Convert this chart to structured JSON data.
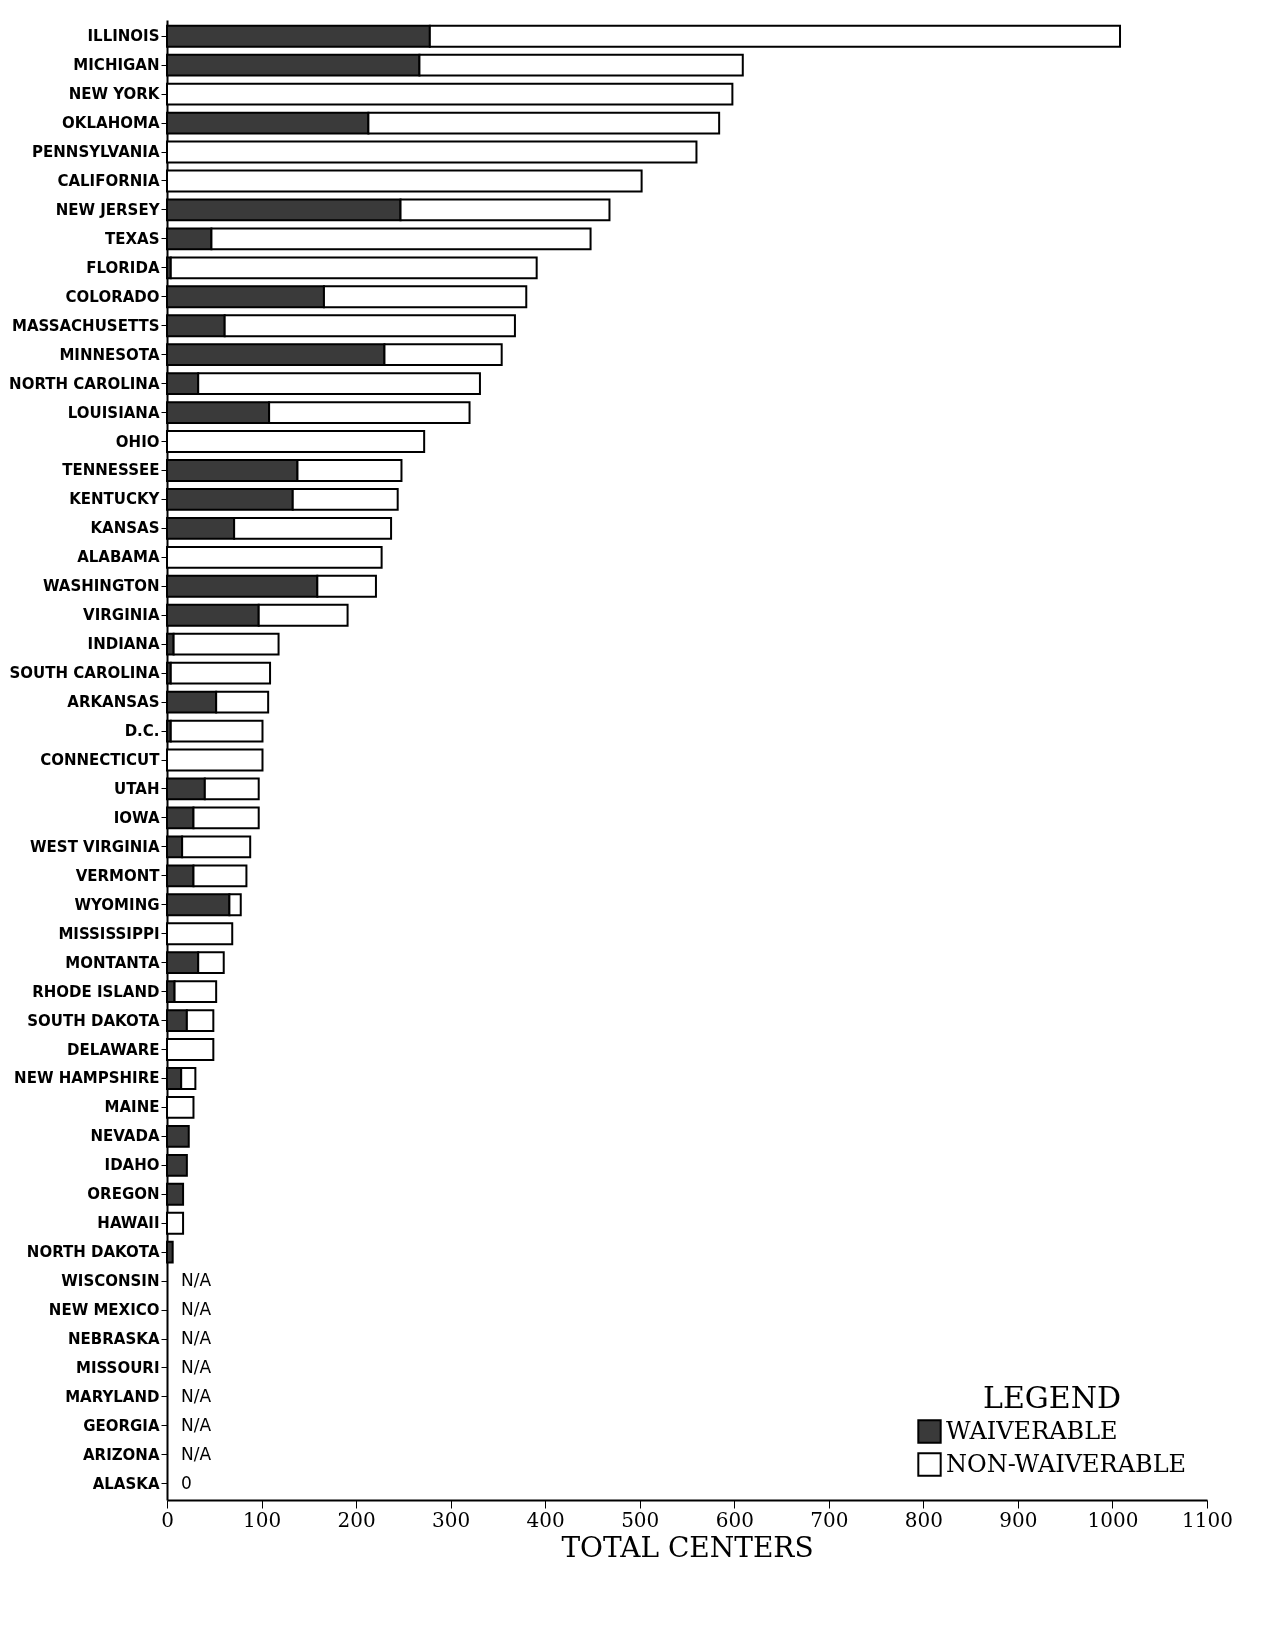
{
  "chart_data": {
    "type": "bar",
    "orientation": "horizontal",
    "stacked": true,
    "categories": [
      "ILLINOIS",
      "MICHIGAN",
      "NEW YORK",
      "OKLAHOMA",
      "PENNSYLVANIA",
      "CALIFORNIA",
      "NEW JERSEY",
      "TEXAS",
      "FLORIDA",
      "COLORADO",
      "MASSACHUSETTS",
      "MINNESOTA",
      "NORTH CAROLINA",
      "LOUISIANA",
      "OHIO",
      "TENNESSEE",
      "KENTUCKY",
      "KANSAS",
      "ALABAMA",
      "WASHINGTON",
      "VIRGINIA",
      "INDIANA",
      "SOUTH CAROLINA",
      "ARKANSAS",
      "D.C.",
      "CONNECTICUT",
      "UTAH",
      "IOWA",
      "WEST VIRGINIA",
      "VERMONT",
      "WYOMING",
      "MISSISSIPPI",
      "MONTANTA",
      "RHODE ISLAND",
      "SOUTH DAKOTA",
      "DELAWARE",
      "NEW HAMPSHIRE",
      "MAINE",
      "NEVADA",
      "IDAHO",
      "OREGON",
      "HAWAII",
      "NORTH DAKOTA",
      "WISCONSIN",
      "NEW MEXICO",
      "NEBRASKA",
      "MISSOURI",
      "MARYLAND",
      "GEORGIA",
      "ARIZONA",
      "ALASKA"
    ],
    "series": [
      {
        "name": "WAIVERABLE",
        "color": "#3a3a3a",
        "values": [
          278,
          267,
          0,
          213,
          0,
          0,
          247,
          47,
          4,
          166,
          61,
          230,
          33,
          108,
          0,
          138,
          133,
          71,
          0,
          159,
          97,
          7,
          4,
          52,
          4,
          0,
          40,
          28,
          16,
          28,
          66,
          0,
          33,
          8,
          21,
          0,
          15,
          0,
          23,
          21,
          17,
          0,
          6,
          null,
          null,
          null,
          null,
          null,
          null,
          null,
          0
        ],
        "value_labels": [
          null,
          null,
          null,
          null,
          null,
          null,
          null,
          null,
          null,
          null,
          null,
          null,
          null,
          null,
          null,
          null,
          null,
          null,
          null,
          null,
          null,
          null,
          null,
          null,
          null,
          null,
          null,
          null,
          null,
          null,
          null,
          null,
          null,
          null,
          null,
          null,
          null,
          null,
          null,
          null,
          null,
          null,
          null,
          "N/A",
          "N/A",
          "N/A",
          "N/A",
          "N/A",
          "N/A",
          "N/A",
          "0"
        ]
      },
      {
        "name": "NON-WAIVERABLE",
        "color": "#ffffff",
        "values": [
          730,
          342,
          598,
          371,
          560,
          502,
          221,
          401,
          387,
          214,
          307,
          124,
          298,
          212,
          272,
          110,
          111,
          166,
          227,
          62,
          94,
          111,
          105,
          55,
          97,
          101,
          57,
          69,
          72,
          56,
          12,
          69,
          27,
          44,
          28,
          49,
          15,
          28,
          0,
          0,
          0,
          17,
          0,
          null,
          null,
          null,
          null,
          null,
          null,
          null,
          0
        ]
      }
    ],
    "xlabel": "TOTAL CENTERS",
    "legend_title": "LEGEND",
    "legend": "bottom right",
    "grid": false,
    "xlim": [
      0,
      1100
    ],
    "xticks": [
      0,
      100,
      200,
      300,
      400,
      500,
      600,
      700,
      800,
      900,
      1000,
      1100
    ]
  }
}
